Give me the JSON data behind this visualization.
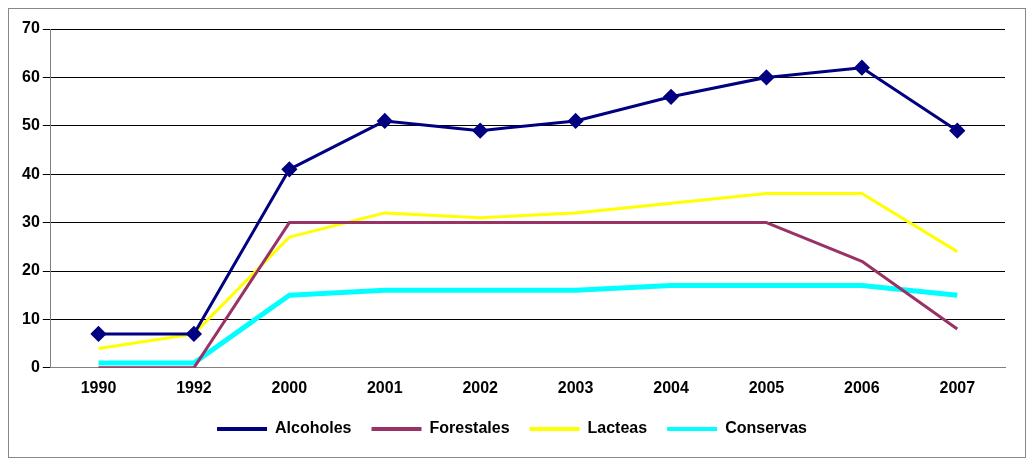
{
  "chart_data": {
    "type": "line",
    "categories": [
      "1990",
      "1992",
      "2000",
      "2001",
      "2002",
      "2003",
      "2004",
      "2005",
      "2006",
      "2007"
    ],
    "series": [
      {
        "name": "Alcoholes",
        "color": "#000080",
        "marker": "diamond",
        "values": [
          7,
          7,
          41,
          51,
          49,
          51,
          56,
          60,
          62,
          49
        ]
      },
      {
        "name": "Forestales",
        "color": "#993366",
        "values": [
          0,
          0,
          30,
          30,
          30,
          30,
          30,
          30,
          22,
          8
        ]
      },
      {
        "name": "Lacteas",
        "color": "#ffff00",
        "values": [
          4,
          7,
          27,
          32,
          31,
          32,
          34,
          36,
          36,
          24
        ]
      },
      {
        "name": "Conservas",
        "color": "#00ffff",
        "values": [
          1,
          1,
          15,
          16,
          16,
          16,
          17,
          17,
          17,
          15
        ]
      }
    ],
    "ylim": [
      0,
      70
    ],
    "yticks": [
      0,
      10,
      20,
      30,
      40,
      50,
      60,
      70
    ],
    "grid": "y",
    "legend": "bottom",
    "marker": "none"
  }
}
